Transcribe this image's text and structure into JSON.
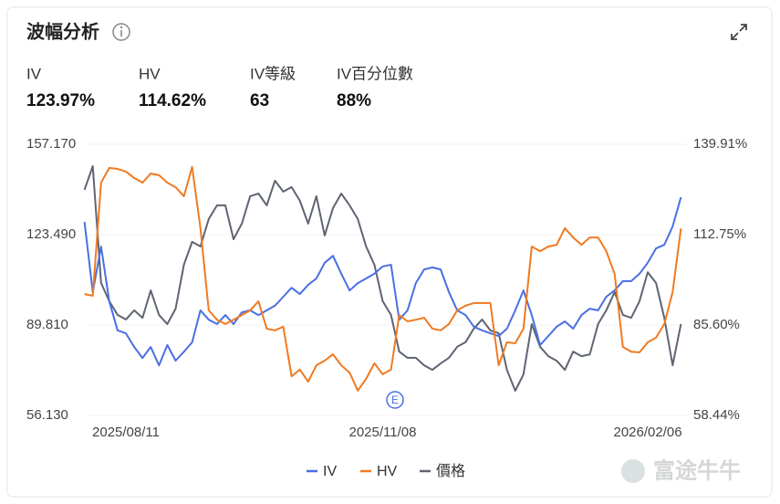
{
  "header": {
    "title": "波幅分析"
  },
  "stats": [
    {
      "label": "IV",
      "value": "123.97%"
    },
    {
      "label": "HV",
      "value": "114.62%"
    },
    {
      "label": "IV等級",
      "value": "63"
    },
    {
      "label": "IV百分位數",
      "value": "88%"
    }
  ],
  "event_marker": "E",
  "watermark": "富途牛牛",
  "chart_data": {
    "type": "line",
    "categories": [
      null,
      null,
      null,
      null,
      null,
      "2025/08/11",
      null,
      null,
      null,
      null,
      null,
      null,
      null,
      null,
      null,
      null,
      null,
      null,
      null,
      null,
      null,
      null,
      null,
      null,
      null,
      null,
      null,
      null,
      null,
      null,
      null,
      null,
      null,
      null,
      null,
      null,
      "2025/11/08",
      null,
      null,
      null,
      null,
      null,
      null,
      null,
      null,
      null,
      null,
      null,
      null,
      null,
      null,
      null,
      null,
      null,
      null,
      null,
      null,
      null,
      null,
      null,
      null,
      null,
      null,
      null,
      null,
      null,
      null,
      null,
      "2026/02/06",
      null,
      null,
      null,
      null
    ],
    "series": [
      {
        "name": "IV",
        "color": "#4a6fe3",
        "axis": "y2",
        "values": [
          116.6,
          95.5,
          109.2,
          92.7,
          84.0,
          83.1,
          79.0,
          75.7,
          79.0,
          73.5,
          79.6,
          74.9,
          77.6,
          80.4,
          90.0,
          87.2,
          85.9,
          88.6,
          85.9,
          89.4,
          90.0,
          88.6,
          90.0,
          91.4,
          94.1,
          96.8,
          94.9,
          97.7,
          99.6,
          104.3,
          106.4,
          101.0,
          96.0,
          98.2,
          99.6,
          101.0,
          103.2,
          103.7,
          87.2,
          90.0,
          98.2,
          102.3,
          102.9,
          102.3,
          95.5,
          90.0,
          88.6,
          85.1,
          84.0,
          83.1,
          82.3,
          84.5,
          90.0,
          96.0,
          88.6,
          79.6,
          82.3,
          85.1,
          86.7,
          84.5,
          88.6,
          90.5,
          90.0,
          94.1,
          96.0,
          98.8,
          98.8,
          101.0,
          104.3,
          108.6,
          109.7,
          115.2,
          124.0
        ]
      },
      {
        "name": "HV",
        "color": "#f07a22",
        "axis": "y2",
        "values": [
          94.9,
          94.4,
          128.4,
          132.8,
          132.5,
          131.7,
          129.8,
          128.4,
          131.1,
          130.6,
          128.4,
          127.0,
          124.3,
          133.1,
          114.7,
          90.0,
          87.2,
          85.9,
          87.2,
          88.6,
          90.0,
          92.7,
          84.5,
          84.0,
          85.1,
          70.2,
          72.2,
          68.6,
          73.5,
          74.9,
          76.8,
          73.5,
          71.3,
          65.9,
          69.4,
          74.1,
          70.8,
          72.2,
          88.6,
          86.7,
          87.2,
          87.8,
          84.5,
          84.0,
          85.9,
          90.0,
          91.4,
          92.2,
          92.2,
          92.2,
          73.5,
          80.4,
          80.1,
          84.5,
          109.2,
          107.8,
          109.2,
          109.7,
          114.7,
          111.9,
          109.7,
          111.9,
          111.9,
          107.8,
          101.0,
          79.0,
          77.6,
          77.4,
          80.4,
          81.8,
          85.9,
          95.5,
          114.6
        ]
      },
      {
        "name": "價格",
        "color": "#5f6473",
        "values": [
          140.2,
          149.0,
          105.5,
          98.7,
          93.6,
          91.9,
          95.3,
          92.5,
          102.7,
          93.6,
          90.2,
          95.9,
          112.3,
          120.8,
          119.1,
          129.3,
          134.4,
          134.4,
          121.8,
          127.6,
          137.8,
          138.8,
          134.4,
          143.6,
          139.5,
          141.2,
          136.1,
          127.6,
          137.8,
          123.2,
          133.4,
          138.8,
          134.4,
          129.3,
          119.1,
          112.3,
          98.7,
          93.6,
          79.9,
          77.6,
          77.6,
          74.8,
          73.1,
          75.5,
          77.6,
          81.7,
          83.4,
          88.5,
          91.9,
          87.8,
          86.8,
          73.1,
          65.3,
          71.4,
          90.2,
          81.7,
          78.2,
          76.5,
          73.1,
          79.9,
          78.2,
          78.9,
          90.2,
          95.3,
          102.1,
          93.6,
          92.5,
          98.7,
          109.5,
          105.5,
          92.5,
          74.8,
          90.2
        ]
      }
    ],
    "ylim": [
      56.13,
      157.17
    ],
    "yticks": [
      {
        "value": 56.13,
        "label": "56.130"
      },
      {
        "value": 89.81,
        "label": "89.810"
      },
      {
        "value": 123.49,
        "label": "123.490"
      },
      {
        "value": 157.17,
        "label": "157.170"
      }
    ],
    "y2lim": [
      58.44,
      139.91
    ],
    "y2ticks": [
      {
        "value": 58.44,
        "label": "58.44%"
      },
      {
        "value": 85.6,
        "label": "85.60%"
      },
      {
        "value": 112.75,
        "label": "112.75%"
      },
      {
        "value": 139.91,
        "label": "139.91%"
      }
    ],
    "grid": true
  }
}
